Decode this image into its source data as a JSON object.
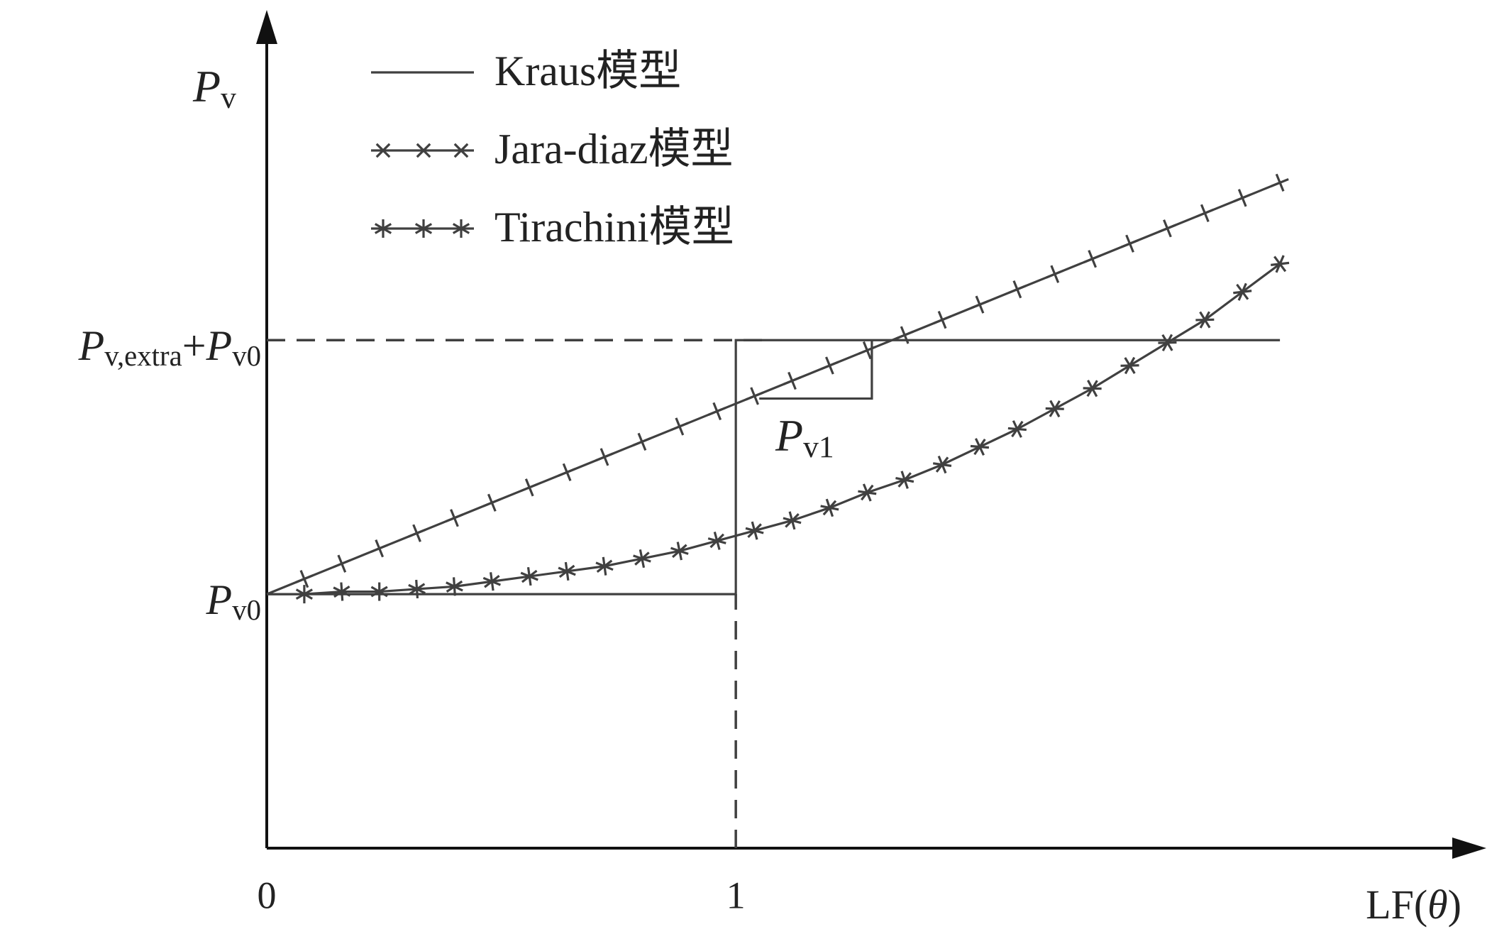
{
  "chart_data": {
    "type": "line",
    "y_label": [
      "P",
      "v"
    ],
    "x_label": [
      "LF(",
      "θ",
      ")"
    ],
    "xlim": [
      0,
      2.6
    ],
    "ylim": [
      0,
      3.3
    ],
    "xticks": [
      0,
      1
    ],
    "yticks": [
      {
        "value": 1,
        "label": [
          "P",
          "v0"
        ]
      },
      {
        "value": 2,
        "label": [
          "P",
          "v,extra",
          "+",
          "P",
          "v0"
        ]
      }
    ],
    "annotations": [
      {
        "text": [
          "P",
          "v1"
        ]
      }
    ],
    "legend": "upper left",
    "color": "#404040",
    "series": [
      {
        "name": "Kraus模型",
        "marker": "none",
        "x": [
          0,
          1,
          1,
          2.16
        ],
        "values": [
          1,
          1,
          2,
          2
        ]
      },
      {
        "name": "Jara-diaz模型",
        "marker": "plus",
        "x": [
          0,
          0.08,
          0.16,
          0.24,
          0.32,
          0.4,
          0.48,
          0.56,
          0.64,
          0.72,
          0.8,
          0.88,
          0.96,
          1.04,
          1.12,
          1.2,
          1.28,
          1.36,
          1.44,
          1.52,
          1.6,
          1.68,
          1.76,
          1.84,
          1.92,
          2.0,
          2.08,
          2.16
        ],
        "values": [
          1,
          1.06,
          1.12,
          1.18,
          1.24,
          1.3,
          1.36,
          1.42,
          1.48,
          1.54,
          1.6,
          1.66,
          1.72,
          1.78,
          1.84,
          1.9,
          1.96,
          2.02,
          2.08,
          2.14,
          2.2,
          2.26,
          2.32,
          2.38,
          2.44,
          2.5,
          2.56,
          2.62
        ]
      },
      {
        "name": "Tirachini模型",
        "marker": "asterisk",
        "x": [
          0,
          0.08,
          0.16,
          0.24,
          0.32,
          0.4,
          0.48,
          0.56,
          0.64,
          0.72,
          0.8,
          0.88,
          0.96,
          1.04,
          1.12,
          1.2,
          1.28,
          1.36,
          1.44,
          1.52,
          1.6,
          1.68,
          1.76,
          1.84,
          1.92,
          2.0,
          2.08,
          2.16
        ],
        "values": [
          1,
          1,
          1.01,
          1.01,
          1.02,
          1.03,
          1.05,
          1.07,
          1.09,
          1.11,
          1.14,
          1.17,
          1.21,
          1.25,
          1.29,
          1.34,
          1.4,
          1.45,
          1.51,
          1.58,
          1.65,
          1.73,
          1.81,
          1.9,
          1.99,
          2.08,
          2.19,
          2.3
        ]
      }
    ]
  }
}
